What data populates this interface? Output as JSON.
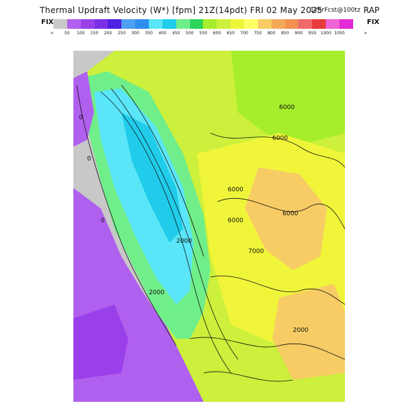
{
  "header": {
    "title": "Thermal Updraft Velocity (W*) [fpm] 21Z(14pdt) FRI 02 May 2025",
    "forecast": "12hrFcst@100tz",
    "model": "RAP"
  },
  "legend": {
    "fix_left": "FIX",
    "fix_right": "FIX",
    "left_arrow": "<",
    "right_arrow": ">",
    "swatches": [
      "#c8c8c8",
      "#b060ee",
      "#9a40ea",
      "#7a30e6",
      "#5020e0",
      "#4ea0f0",
      "#2e8ef0",
      "#5ae6f8",
      "#20ccea",
      "#70ee8a",
      "#2fd45a",
      "#a6ee2c",
      "#ccf03c",
      "#f0f53a",
      "#ffff64",
      "#f8cc64",
      "#f2aa58",
      "#f49050",
      "#ee6a6a",
      "#e83a3a",
      "#f064d6",
      "#e22ad6"
    ],
    "labels": [
      "50",
      "100",
      "150",
      "200",
      "250",
      "300",
      "350",
      "400",
      "450",
      "500",
      "550",
      "600",
      "650",
      "700",
      "750",
      "800",
      "850",
      "900",
      "950",
      "1000",
      "1050"
    ]
  },
  "map": {
    "contour_labels": [
      "6000",
      "6000",
      "6000",
      "6000",
      "6000",
      "7000",
      "2000",
      "2000",
      "2000",
      "0",
      "0",
      "0"
    ]
  }
}
